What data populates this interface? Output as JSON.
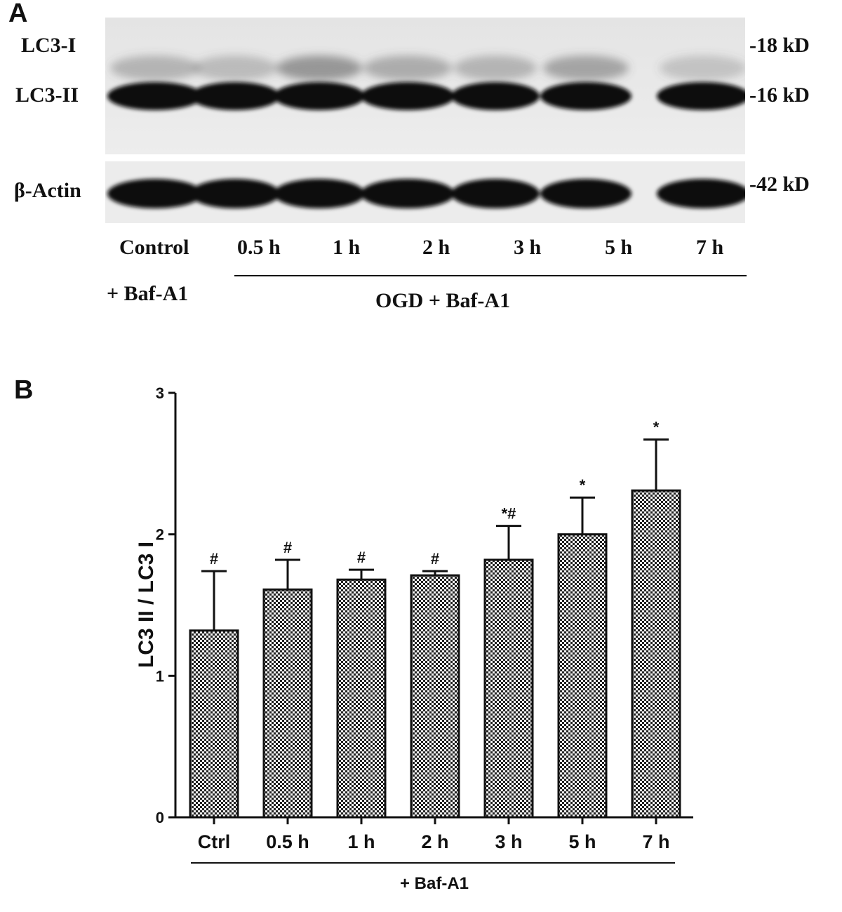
{
  "panel_a": {
    "letter": "A",
    "band_labels": [
      "LC3-I",
      "LC3-II",
      "β-Actin"
    ],
    "size_markers": [
      "-18 kD",
      "-16 kD",
      "-42 kD"
    ],
    "lanes": [
      "Control",
      "0.5 h",
      "1 h",
      "2 h",
      "3 h",
      "5 h",
      "7 h"
    ],
    "control_treatment": "+ Baf-A1",
    "group_label": "OGD + Baf-A1",
    "band_intensity": {
      "lc3_i": [
        0.35,
        0.3,
        0.55,
        0.4,
        0.35,
        0.45,
        0.25
      ],
      "lc3_ii": [
        1,
        1,
        1,
        1,
        1,
        1,
        1
      ],
      "beta_actin": [
        1,
        1,
        1,
        1,
        1,
        1,
        1
      ]
    }
  },
  "panel_b": {
    "letter": "B",
    "footer_label": "+ Baf-A1"
  },
  "chart_data": {
    "type": "bar",
    "categories": [
      "Ctrl",
      "0.5 h",
      "1 h",
      "2 h",
      "3 h",
      "5 h",
      "7 h"
    ],
    "values": [
      1.32,
      1.61,
      1.68,
      1.71,
      1.82,
      2.0,
      2.31
    ],
    "error": [
      0.42,
      0.21,
      0.07,
      0.03,
      0.24,
      0.26,
      0.36
    ],
    "annotations": [
      "#",
      "#",
      "#",
      "#",
      "*#",
      "*",
      "*"
    ],
    "xlabel": "",
    "ylabel": "LC3 II / LC3 I",
    "ylim": [
      0,
      3
    ],
    "yticks": [
      0,
      1,
      2,
      3
    ],
    "grid": false,
    "bar_fill": "checkered",
    "colors": {
      "bar_dark": "#222222",
      "bar_light": "#f2f2f2",
      "axis": "#111111"
    }
  }
}
